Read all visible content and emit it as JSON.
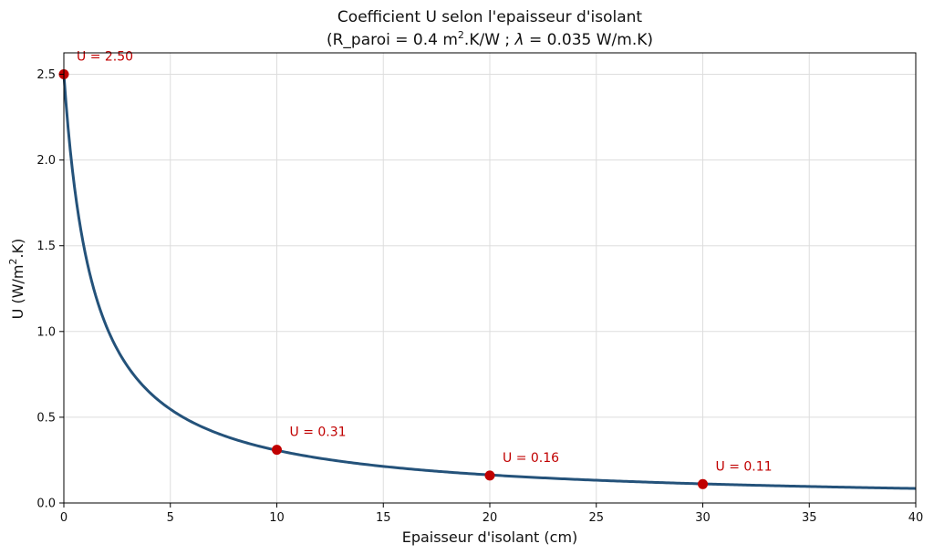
{
  "chart_data": {
    "type": "line",
    "title_line1": "Coefficient U selon l'epaisseur d'isolant",
    "title_line2_prefix": "(R_paroi = 0.4 m",
    "title_line2_sup": "2",
    "title_line2_mid": ".K/W ; ",
    "title_line2_lambda": "λ",
    "title_line2_suffix": " = 0.035 W/m.K)",
    "xlabel": "Epaisseur d'isolant (cm)",
    "ylabel_prefix": "U (W/m",
    "ylabel_sup": "2",
    "ylabel_suffix": ".K)",
    "xlim": [
      0,
      40
    ],
    "ylim": [
      0,
      2.625
    ],
    "xticks": [
      0,
      5,
      10,
      15,
      20,
      25,
      30,
      35,
      40
    ],
    "yticks": [
      0.0,
      0.5,
      1.0,
      1.5,
      2.0,
      2.5
    ],
    "ytick_labels": [
      "0.0",
      "0.5",
      "1.0",
      "1.5",
      "2.0",
      "2.5"
    ],
    "grid": true,
    "r_paroi": 0.4,
    "lambda": 0.035,
    "series": [
      {
        "x": [
          0,
          0.5,
          1,
          1.5,
          2,
          2.5,
          3,
          4,
          5,
          6,
          7,
          8,
          10,
          12,
          15,
          20,
          25,
          30,
          35,
          40
        ],
        "y": [
          2.5,
          1.6,
          1.18,
          0.93,
          0.77,
          0.66,
          0.57,
          0.46,
          0.38,
          0.33,
          0.28,
          0.25,
          0.31,
          0.26,
          0.21,
          0.16,
          0.13,
          0.11,
          0.097,
          0.085
        ]
      }
    ],
    "highlight_points": [
      {
        "x": 0,
        "y": 2.5,
        "label": "U = 2.50"
      },
      {
        "x": 10,
        "y": 0.31,
        "label": "U = 0.31"
      },
      {
        "x": 20,
        "y": 0.16,
        "label": "U = 0.16"
      },
      {
        "x": 30,
        "y": 0.11,
        "label": "U = 0.11"
      }
    ],
    "line_color": "#24527a",
    "point_color": "#c00000",
    "annotation_color": "#c00000",
    "grid_color": "#dddddd"
  }
}
